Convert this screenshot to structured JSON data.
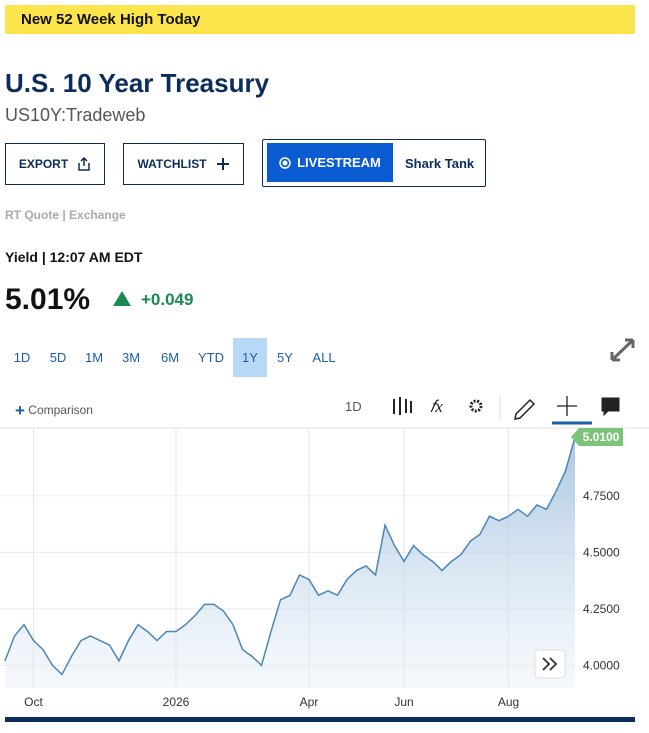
{
  "banner": "New 52 Week High Today",
  "header": {
    "title": "U.S. 10 Year Treasury",
    "symbol": "US10Y:Tradeweb"
  },
  "buttons": {
    "export": "EXPORT",
    "watchlist": "WATCHLIST",
    "livestream": "LIVESTREAM",
    "show": "Shark Tank"
  },
  "quote": {
    "source": "RT Quote | Exchange",
    "time": "Yield | 12:07 AM EDT",
    "price": "5.01%",
    "change": "+0.049"
  },
  "ranges": [
    "1D",
    "5D",
    "1M",
    "3M",
    "6M",
    "YTD",
    "1Y",
    "5Y",
    "ALL"
  ],
  "active_range": "1Y",
  "toolbar": {
    "comparison": "Comparison",
    "interval": "1D"
  },
  "chart_data": {
    "type": "area",
    "color": "#4a86b8",
    "grid": true,
    "categories": [
      null,
      null,
      null,
      "Oct",
      null,
      null,
      null,
      null,
      null,
      null,
      null,
      null,
      null,
      null,
      null,
      null,
      null,
      null,
      "2026",
      null,
      null,
      null,
      null,
      null,
      null,
      null,
      null,
      null,
      null,
      null,
      null,
      null,
      "Apr",
      null,
      null,
      null,
      null,
      null,
      null,
      null,
      null,
      null,
      "Jun",
      null,
      null,
      null,
      null,
      null,
      null,
      null,
      null,
      null,
      null,
      "Aug",
      null,
      null,
      null,
      null,
      null,
      null,
      null
    ],
    "values": [
      4.02,
      4.13,
      4.18,
      4.11,
      4.07,
      4.0,
      3.96,
      4.04,
      4.11,
      4.13,
      4.11,
      4.09,
      4.02,
      4.11,
      4.18,
      4.15,
      4.11,
      4.15,
      4.15,
      4.18,
      4.22,
      4.27,
      4.27,
      4.24,
      4.18,
      4.07,
      4.04,
      4.0,
      4.15,
      4.29,
      4.31,
      4.4,
      4.38,
      4.31,
      4.33,
      4.31,
      4.38,
      4.42,
      4.44,
      4.4,
      4.62,
      4.53,
      4.46,
      4.53,
      4.49,
      4.46,
      4.42,
      4.46,
      4.49,
      4.55,
      4.58,
      4.66,
      4.64,
      4.66,
      4.69,
      4.66,
      4.71,
      4.69,
      4.77,
      4.86,
      5.01
    ],
    "value_labels": [
      null,
      null,
      null,
      null,
      null,
      null,
      null,
      null,
      null,
      null,
      null,
      null,
      null,
      null,
      null,
      null,
      null,
      null,
      null,
      null,
      null,
      null,
      null,
      null,
      null,
      null,
      null,
      null,
      null,
      null,
      null,
      null,
      null,
      null,
      null,
      null,
      null,
      null,
      null,
      null,
      null,
      null,
      null,
      null,
      null,
      null,
      null,
      null,
      null,
      null,
      null,
      null,
      null,
      null,
      null,
      null,
      null,
      null,
      null,
      null,
      "5.0100"
    ],
    "ylim": [
      3.9,
      5.05
    ],
    "yticks": [
      {
        "value": 4,
        "label": "4.0000"
      },
      {
        "value": 4.25,
        "label": "4.2500"
      },
      {
        "value": 4.5,
        "label": "4.5000"
      },
      {
        "value": 4.75,
        "label": "4.7500"
      }
    ]
  }
}
